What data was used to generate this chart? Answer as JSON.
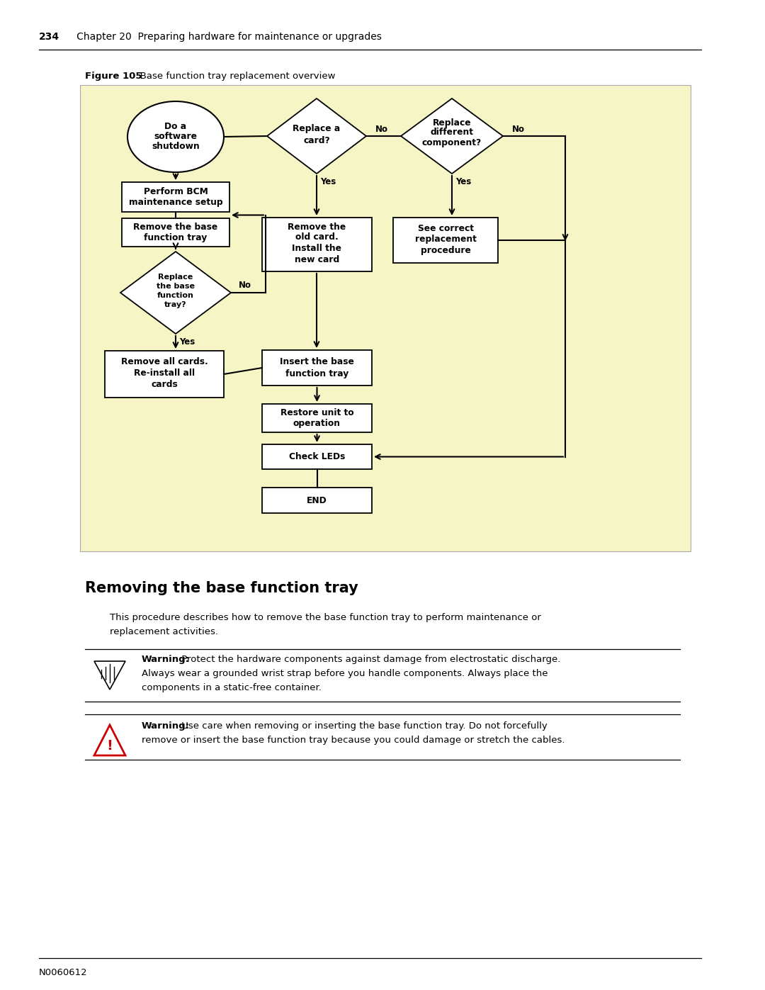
{
  "page_header_num": "234",
  "page_header_rest": "   Chapter 20  Preparing hardware for maintenance or upgrades",
  "figure_label": "Figure 105",
  "figure_title": "   Base function tray replacement overview",
  "section_title": "Removing the base function tray",
  "body_line1": "This procedure describes how to remove the base function tray to perform maintenance or",
  "body_line2": "replacement activities.",
  "w1_bold": "Warning:",
  "w1_rest": " Protect the hardware components against damage from electrostatic discharge.",
  "w1_line2": "Always wear a grounded wrist strap before you handle components. Always place the",
  "w1_line3": "components in a static-free container.",
  "w2_bold": "Warning:",
  "w2_rest": " Use care when removing or inserting the base function tray. Do not forcefully",
  "w2_line2": "remove or insert the base function tray because you could damage or stretch the cables.",
  "footer": "N0060612",
  "diagram_bg": "#F5F5C5",
  "white": "#FFFFFF",
  "black": "#000000"
}
